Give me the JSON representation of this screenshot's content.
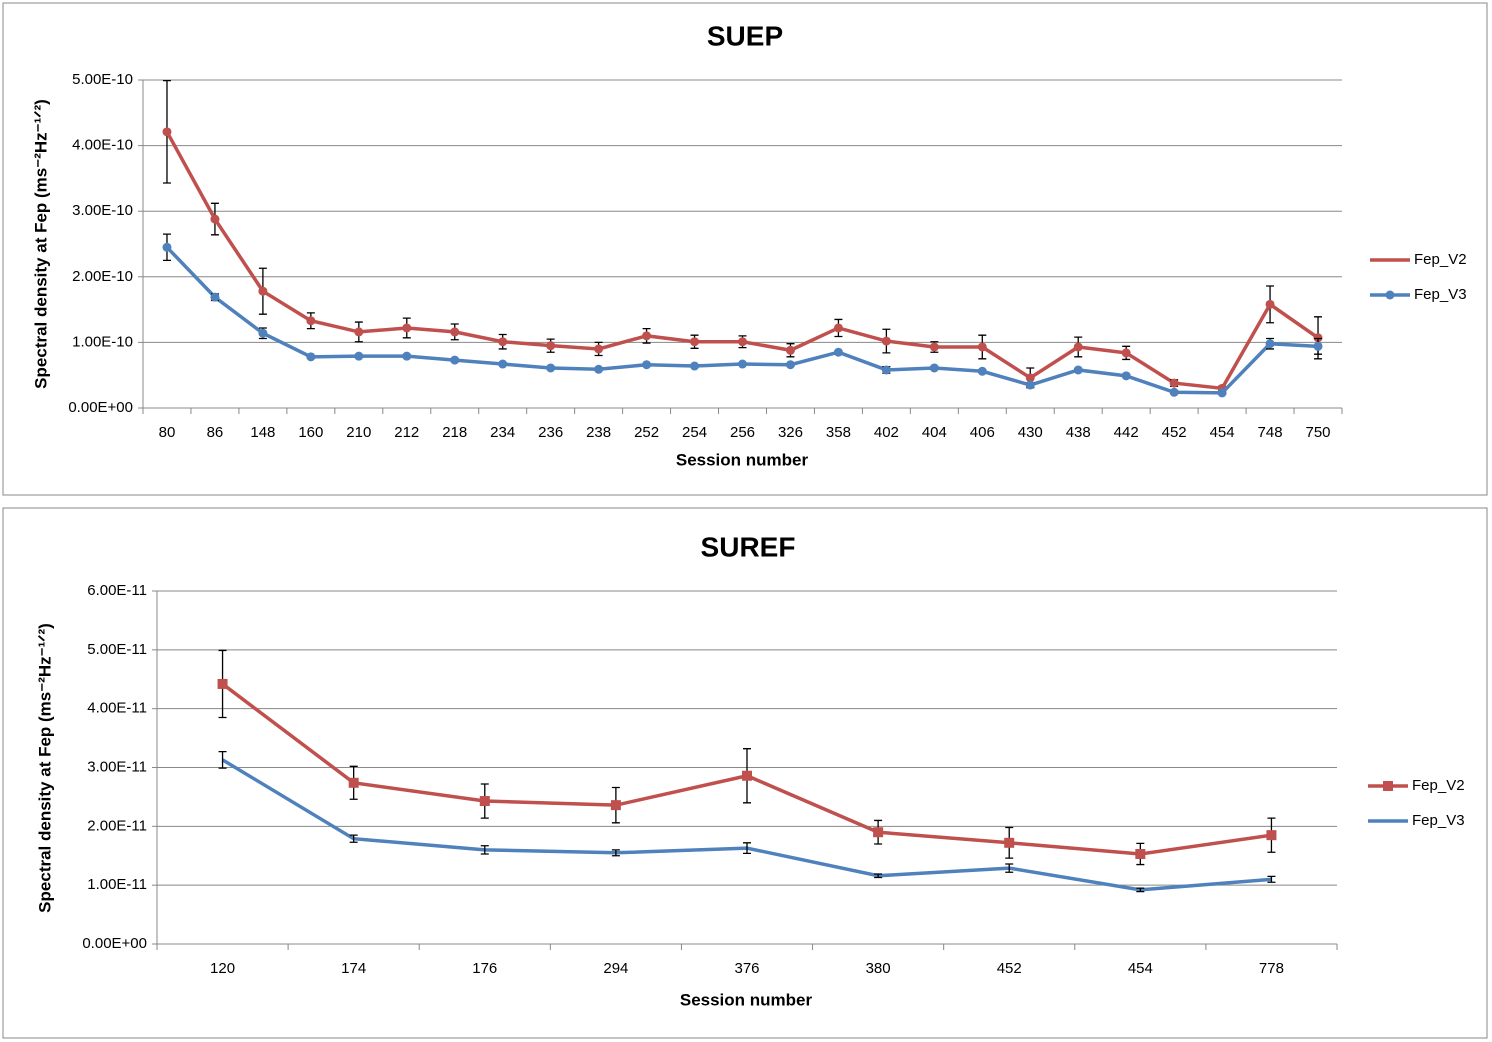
{
  "chart_data": [
    {
      "type": "line",
      "title": "SUEP",
      "x_label": "Session number",
      "y_label": "Spectral density at Fep (ms⁻²Hz⁻¹ᐟ²)",
      "categories": [
        "80",
        "86",
        "148",
        "160",
        "210",
        "212",
        "218",
        "234",
        "236",
        "238",
        "252",
        "254",
        "256",
        "326",
        "358",
        "402",
        "404",
        "406",
        "430",
        "438",
        "442",
        "452",
        "454",
        "748",
        "750"
      ],
      "ylim": [
        0,
        5e-10
      ],
      "yticks": [
        {
          "value": 0,
          "label": "0.00E+00"
        },
        {
          "value": 1e-10,
          "label": "1.00E-10"
        },
        {
          "value": 2e-10,
          "label": "2.00E-10"
        },
        {
          "value": 3e-10,
          "label": "3.00E-10"
        },
        {
          "value": 4e-10,
          "label": "4.00E-10"
        },
        {
          "value": 5e-10,
          "label": "5.00E-10"
        }
      ],
      "grid": true,
      "legend": "right",
      "series": [
        {
          "name": "Fep_V2",
          "color": "#c0504d",
          "marker": "circle",
          "legend_marker": false,
          "values": [
            4.21e-10,
            2.88e-10,
            1.78e-10,
            1.33e-10,
            1.16e-10,
            1.22e-10,
            1.16e-10,
            1.01e-10,
            9.5e-11,
            9e-11,
            1.1e-10,
            1.01e-10,
            1.01e-10,
            8.8e-11,
            1.22e-10,
            1.02e-10,
            9.3e-11,
            9.3e-11,
            4.6e-11,
            9.3e-11,
            8.4e-11,
            3.8e-11,
            3e-11,
            1.58e-10,
            1.07e-10
          ],
          "errors": [
            7.8e-11,
            2.4e-11,
            3.5e-11,
            1.2e-11,
            1.5e-11,
            1.5e-11,
            1.2e-11,
            1.1e-11,
            1e-11,
            1e-11,
            1.1e-11,
            1e-11,
            9e-12,
            1e-11,
            1.3e-11,
            1.8e-11,
            8e-12,
            1.8e-11,
            1.5e-11,
            1.5e-11,
            1e-11,
            5e-12,
            3e-12,
            2.8e-11,
            3.2e-11
          ]
        },
        {
          "name": "Fep_V3",
          "color": "#4f81bd",
          "marker": "circle",
          "legend_marker": true,
          "values": [
            2.45e-10,
            1.69e-10,
            1.14e-10,
            7.8e-11,
            7.9e-11,
            7.9e-11,
            7.3e-11,
            6.7e-11,
            6.1e-11,
            5.9e-11,
            6.6e-11,
            6.4e-11,
            6.7e-11,
            6.6e-11,
            8.5e-11,
            5.8e-11,
            6.1e-11,
            5.6e-11,
            3.5e-11,
            5.8e-11,
            4.9e-11,
            2.4e-11,
            2.3e-11,
            9.8e-11,
            9.4e-11
          ],
          "errors": [
            2e-11,
            5e-12,
            8e-12,
            2e-12,
            2e-12,
            2e-12,
            2e-12,
            2e-12,
            2e-12,
            2e-12,
            2e-12,
            2e-12,
            2e-12,
            2e-12,
            2e-12,
            5e-12,
            2e-12,
            2e-12,
            3e-12,
            2e-12,
            2e-12,
            2e-12,
            2e-12,
            8e-12,
            1.2e-11
          ]
        }
      ]
    },
    {
      "type": "line",
      "title": "SUREF",
      "x_label": "Session number",
      "y_label": "Spectral density at Fep (ms⁻²Hz⁻¹ᐟ²)",
      "categories": [
        "120",
        "174",
        "176",
        "294",
        "376",
        "380",
        "452",
        "454",
        "778"
      ],
      "ylim": [
        0,
        6e-11
      ],
      "yticks": [
        {
          "value": 0,
          "label": "0.00E+00"
        },
        {
          "value": 1e-11,
          "label": "1.00E-11"
        },
        {
          "value": 2e-11,
          "label": "2.00E-11"
        },
        {
          "value": 3e-11,
          "label": "3.00E-11"
        },
        {
          "value": 4e-11,
          "label": "4.00E-11"
        },
        {
          "value": 5e-11,
          "label": "5.00E-11"
        },
        {
          "value": 6e-11,
          "label": "6.00E-11"
        }
      ],
      "grid": true,
      "legend": "right",
      "series": [
        {
          "name": "Fep_V2",
          "color": "#c0504d",
          "marker": "square",
          "legend_marker": true,
          "values": [
            4.42e-11,
            2.74e-11,
            2.43e-11,
            2.36e-11,
            2.86e-11,
            1.9e-11,
            1.72e-11,
            1.53e-11,
            1.85e-11
          ],
          "errors": [
            5.7e-12,
            2.8e-12,
            2.9e-12,
            3e-12,
            4.6e-12,
            2e-12,
            2.6e-12,
            1.8e-12,
            2.9e-12
          ]
        },
        {
          "name": "Fep_V3",
          "color": "#4f81bd",
          "marker": "none",
          "legend_marker": false,
          "values": [
            3.13e-11,
            1.79e-11,
            1.6e-11,
            1.55e-11,
            1.63e-11,
            1.16e-11,
            1.29e-11,
            9.2e-12,
            1.1e-11
          ],
          "errors": [
            1.4e-12,
            6e-13,
            7e-13,
            5e-13,
            9e-13,
            3e-13,
            7e-13,
            3e-13,
            5e-13
          ]
        }
      ]
    }
  ]
}
